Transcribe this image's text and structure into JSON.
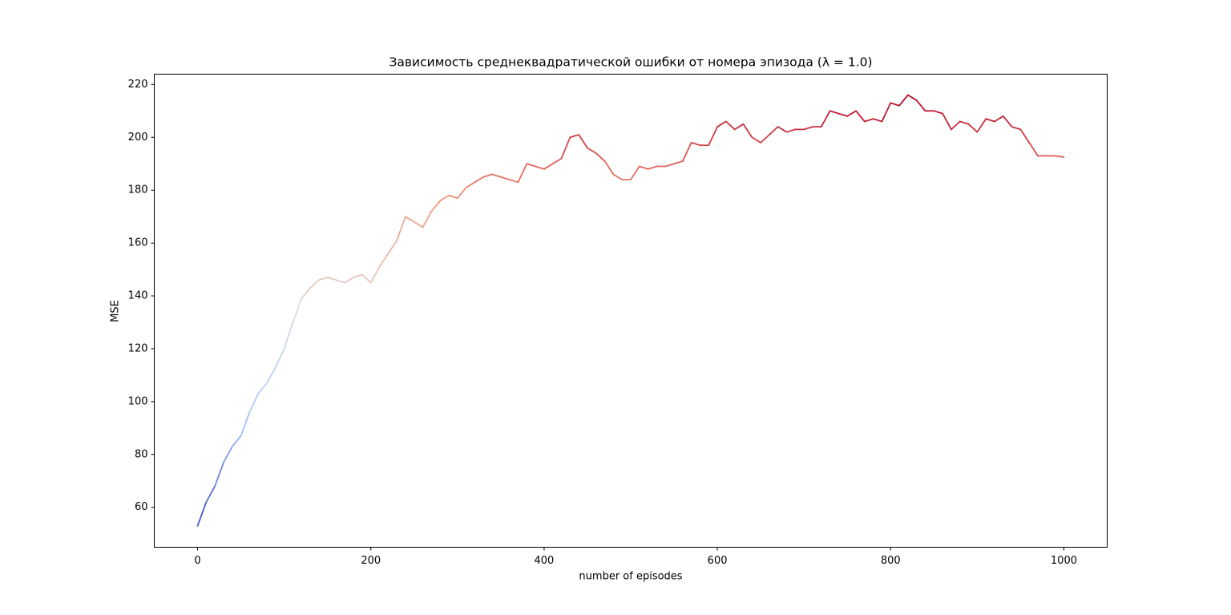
{
  "chart_data": {
    "type": "line",
    "title": "Зависимость среднеквадратической ошибки от номера эпизода (λ = 1.0)",
    "xlabel": "number of episodes",
    "ylabel": "MSE",
    "x": [
      0,
      10,
      20,
      30,
      40,
      50,
      60,
      70,
      80,
      90,
      100,
      110,
      120,
      130,
      140,
      150,
      160,
      170,
      180,
      190,
      200,
      210,
      220,
      230,
      240,
      250,
      260,
      270,
      280,
      290,
      300,
      310,
      320,
      330,
      340,
      350,
      360,
      370,
      380,
      390,
      400,
      410,
      420,
      430,
      440,
      450,
      460,
      470,
      480,
      490,
      500,
      510,
      520,
      530,
      540,
      550,
      560,
      570,
      580,
      590,
      600,
      610,
      620,
      630,
      640,
      650,
      660,
      670,
      680,
      690,
      700,
      710,
      720,
      730,
      740,
      750,
      760,
      770,
      780,
      790,
      800,
      810,
      820,
      830,
      840,
      850,
      860,
      870,
      880,
      890,
      900,
      910,
      920,
      930,
      940,
      950,
      960,
      970,
      980,
      990,
      1000
    ],
    "values": [
      53,
      62,
      68,
      77,
      83,
      87,
      96,
      103,
      107,
      113,
      120,
      130,
      139,
      143,
      146,
      147,
      146,
      145,
      147,
      148,
      145,
      151,
      156,
      161,
      170,
      168,
      166,
      172,
      176,
      178,
      177,
      181,
      183,
      185,
      186,
      185,
      184,
      183,
      190,
      189,
      188,
      190,
      192,
      200,
      201,
      196,
      194,
      191,
      186,
      184,
      184,
      189,
      188,
      189,
      189,
      190,
      191,
      198,
      197,
      197,
      204,
      206,
      203,
      205,
      200,
      198,
      201,
      204,
      202,
      203,
      203,
      204,
      204,
      210,
      209,
      208,
      210,
      206,
      207,
      206,
      213,
      212,
      216,
      214,
      210,
      210,
      209,
      203,
      206,
      205,
      202,
      207,
      206,
      208,
      204,
      203,
      198,
      193,
      193,
      193,
      192.5
    ],
    "colormap": [
      "#3b4cc0",
      "#aac7fd",
      "#dddcdc",
      "#f49a7b",
      "#b40426"
    ],
    "xlim": [
      -50,
      1050
    ],
    "ylim": [
      44.9,
      223.9
    ],
    "xticks": [
      0,
      200,
      400,
      600,
      800,
      1000
    ],
    "yticks": [
      60,
      80,
      100,
      120,
      140,
      160,
      180,
      200,
      220
    ],
    "grid": false
  }
}
